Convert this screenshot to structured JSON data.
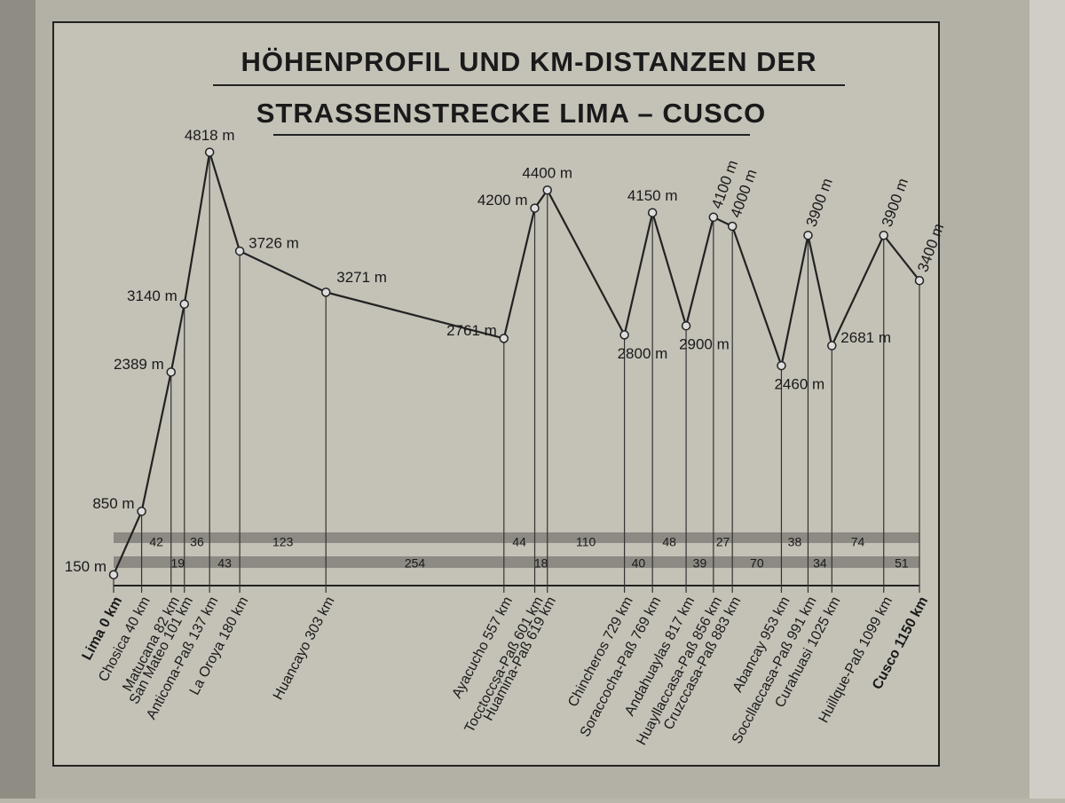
{
  "chart_data": {
    "type": "line",
    "title": [
      "HÖHENPROFIL UND KM-DISTANZEN DER",
      "STRASSENSTRECKE LIMA – CUSCO"
    ],
    "x": [
      0,
      40,
      82,
      101,
      137,
      180,
      303,
      557,
      601,
      619,
      729,
      769,
      817,
      856,
      883,
      953,
      991,
      1025,
      1099,
      1150
    ],
    "series": [
      {
        "color": "#222222",
        "values": [
          150,
          850,
          2389,
          3140,
          4818,
          3726,
          3271,
          2761,
          4200,
          4400,
          2800,
          4150,
          2900,
          4100,
          4000,
          2460,
          3900,
          2681,
          3900,
          3400
        ],
        "value_labels": [
          "150 m",
          "850 m",
          "2389 m",
          "3140 m",
          "4818 m",
          "3726 m",
          "3271 m",
          "2761 m",
          "4200 m",
          "4400 m",
          "2800 m",
          "4150 m",
          "2900 m",
          "4100 m",
          "4000 m",
          "2460 m",
          "3900 m",
          "2681 m",
          "3900 m",
          "3400 m"
        ]
      }
    ],
    "xlim": [
      0,
      1150
    ],
    "ylim": [
      0,
      5000
    ],
    "xticks": [
      {
        "value": 0,
        "label": "Lima 0 km"
      },
      {
        "value": 40,
        "label": "Chosica 40 km"
      },
      {
        "value": 82,
        "label": "Matucana 82 km"
      },
      {
        "value": 101,
        "label": "San Mateo 101 km"
      },
      {
        "value": 137,
        "label": "Anticona-Paß 137 km"
      },
      {
        "value": 180,
        "label": "La Oroya 180 km"
      },
      {
        "value": 303,
        "label": "Huancayo 303 km"
      },
      {
        "value": 557,
        "label": "Ayacucho 557 km"
      },
      {
        "value": 601,
        "label": "Tocctoccsa-Paß 601 km"
      },
      {
        "value": 619,
        "label": "Huamina-Paß 619 km"
      },
      {
        "value": 729,
        "label": "Chincheros 729 km"
      },
      {
        "value": 769,
        "label": "Soraccocha-Paß 769 km"
      },
      {
        "value": 817,
        "label": "Andahuaylas 817 km"
      },
      {
        "value": 856,
        "label": "Huayllaccasa-Paß 856 km"
      },
      {
        "value": 883,
        "label": "Cruzccasa-Paß 883 km"
      },
      {
        "value": 953,
        "label": "Abancay 953 km"
      },
      {
        "value": 991,
        "label": "Soccllaccasa-Paß 991 km"
      },
      {
        "value": 1025,
        "label": "Curahuasi 1025 km"
      },
      {
        "value": 1099,
        "label": "Huillque-Paß 1099 km"
      },
      {
        "value": 1150,
        "label": "Cusco 1150 km"
      }
    ],
    "segment_distances": [
      42,
      19,
      36,
      43,
      123,
      254,
      44,
      18,
      110,
      40,
      48,
      39,
      27,
      70,
      38,
      34,
      74,
      51
    ]
  }
}
